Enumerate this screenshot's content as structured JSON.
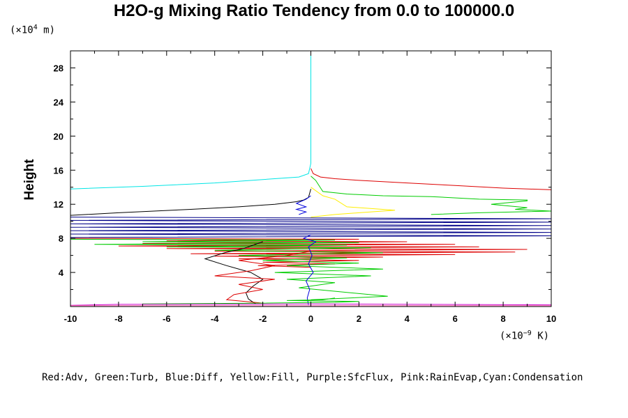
{
  "chart_data": {
    "type": "line",
    "title": "H2O-g Mixing Ratio Tendency from 0.0 to 100000.0",
    "ylabel": "Height",
    "y_unit": {
      "prefix": "(×10",
      "exp": "4",
      "suffix": " m)"
    },
    "x_unit": {
      "prefix": "(×10",
      "exp": "−9",
      "suffix": " K)"
    },
    "xlim": [
      -10,
      10
    ],
    "ylim": [
      0,
      30
    ],
    "x_ticks": [
      -10,
      -8,
      -6,
      -4,
      -2,
      0,
      2,
      4,
      6,
      8,
      10
    ],
    "x_tick_labels": [
      "-10",
      "-8",
      "-6",
      "-4",
      "-2",
      "0",
      "2",
      "4",
      "6",
      "8",
      "10"
    ],
    "y_ticks": [
      4,
      8,
      12,
      16,
      20,
      24,
      28
    ],
    "y_tick_labels": [
      "4",
      "8",
      "12",
      "16",
      "20",
      "24",
      "28"
    ],
    "legend_text": "Red:Adv, Green:Turb, Blue:Diff, Yellow:Fill, Purple:SfcFlux, Pink:RainEvap,Cyan:Condensation",
    "grid": false,
    "series": [
      {
        "color": "#00e5e5",
        "x": [
          0,
          0,
          -0.1,
          -0.5,
          -2,
          -4,
          -7,
          -10,
          -10
        ],
        "y": [
          30,
          16.8,
          15.6,
          15.2,
          14.9,
          14.5,
          14.1,
          13.8,
          13.6
        ]
      },
      {
        "color": "#dd0000",
        "x": [
          0,
          0.1,
          0.4,
          1,
          2,
          4,
          6,
          8,
          10,
          10
        ],
        "y": [
          16.2,
          15.6,
          15.2,
          15,
          14.8,
          14.5,
          14.2,
          13.9,
          13.7,
          13.5
        ]
      },
      {
        "color": "#00cc00",
        "x": [
          0,
          0.2,
          0.5,
          1.5,
          3,
          5,
          7,
          9,
          9,
          7.5,
          9,
          8.5,
          10,
          7,
          5
        ],
        "y": [
          15.3,
          14.8,
          13.5,
          13.2,
          13.0,
          12.9,
          12.6,
          12.5,
          12.4,
          12.0,
          11.6,
          11.4,
          11.2,
          11.0,
          10.8
        ]
      },
      {
        "color": "#ffee00",
        "x": [
          0,
          0.5,
          1,
          1.5,
          3.5,
          2,
          1,
          0
        ],
        "y": [
          14.0,
          13.0,
          12.6,
          11.7,
          11.3,
          11.0,
          10.8,
          10.5
        ]
      },
      {
        "color": "#000000",
        "x": [
          0,
          -0.1,
          -0.3,
          -0.6,
          -1.5,
          -3,
          -5,
          -8,
          -10
        ],
        "y": [
          13.8,
          12.8,
          12.5,
          12.3,
          12.0,
          11.7,
          11.4,
          11.0,
          10.7
        ]
      },
      {
        "color": "#0000dd",
        "x": [
          0,
          -0.2,
          -0.6,
          -0.2,
          -0.6,
          -0.2,
          -0.5
        ],
        "y": [
          13.0,
          12.6,
          12.1,
          11.7,
          11.4,
          11.1,
          10.8
        ]
      },
      {
        "color": "#000088",
        "x": [
          -10,
          10,
          -10,
          10,
          -10,
          10,
          -10,
          10,
          -10,
          10,
          -10,
          10,
          -10
        ],
        "y": [
          10.5,
          10.3,
          10.1,
          9.9,
          9.7,
          9.5,
          9.3,
          9.1,
          8.9,
          8.7,
          8.5,
          8.3,
          8.1
        ]
      },
      {
        "color": "#dd0000",
        "x": [
          -10,
          2,
          -6,
          4,
          -7,
          6,
          -8,
          7,
          -6,
          9,
          -4,
          8.5,
          -5,
          6,
          -4,
          3,
          -3,
          2,
          -2,
          1,
          -2.2,
          0
        ],
        "y": [
          8.0,
          7.9,
          7.7,
          7.6,
          7.4,
          7.3,
          7.1,
          7.0,
          6.8,
          6.7,
          6.5,
          6.4,
          6.2,
          6.1,
          5.9,
          5.8,
          5.6,
          5.4,
          5.2,
          5.0,
          4.8,
          4.6
        ]
      },
      {
        "color": "#00cc00",
        "x": [
          -10,
          1,
          -7,
          2,
          -9,
          1.5,
          -6,
          2.5,
          -4,
          3,
          -3,
          1.5,
          -2,
          2,
          -1,
          3,
          -1.5,
          2.5,
          -1,
          1,
          -0.5,
          3.2,
          0
        ],
        "y": [
          7.9,
          7.8,
          7.6,
          7.5,
          7.3,
          7.2,
          7.0,
          6.9,
          6.6,
          6.3,
          6.0,
          5.7,
          5.4,
          5.1,
          4.8,
          4.4,
          4.0,
          3.6,
          3.2,
          2.8,
          2.2,
          1.2,
          0.8
        ]
      },
      {
        "color": "#000000",
        "x": [
          -2.3,
          -2.6,
          -2.7,
          -2.4,
          -2.0,
          -2.5,
          -3.5,
          -4.4,
          -3.6,
          -2.8,
          -2.4,
          -2.0
        ],
        "y": [
          0.3,
          0.9,
          1.6,
          2.4,
          3.2,
          4.0,
          4.8,
          5.6,
          6.3,
          6.8,
          7.2,
          7.6
        ]
      },
      {
        "color": "#dd0000",
        "x": [
          -2,
          -3.5,
          -3.2,
          -2,
          -3,
          -1.5,
          -4,
          -2.5,
          -1.5,
          -3,
          -1,
          0
        ],
        "y": [
          0.4,
          0.8,
          1.4,
          2.0,
          2.6,
          3.2,
          3.6,
          4.2,
          4.8,
          5.4,
          6.0,
          6.5
        ]
      },
      {
        "color": "#0000dd",
        "x": [
          -0.1,
          -0.15,
          -0.05,
          -0.2,
          0.1,
          -0.1,
          0.05,
          -0.1,
          0.2,
          -0.3,
          0
        ],
        "y": [
          0.2,
          1.0,
          2.0,
          3.0,
          4.0,
          5.0,
          6.0,
          7.0,
          7.6,
          8.0,
          8.4
        ]
      },
      {
        "color": "#00cc00",
        "x": [
          -7,
          -2,
          1,
          2,
          -1,
          0.5,
          1
        ],
        "y": [
          0.3,
          0.4,
          0.5,
          0.6,
          0.7,
          0.8,
          1.0
        ]
      },
      {
        "color": "#cc00cc",
        "x": [
          -10,
          -8,
          0,
          10
        ],
        "y": [
          0.15,
          0.25,
          0.3,
          0.2
        ]
      },
      {
        "color": "#ff69b4",
        "x": [
          -10,
          0,
          10
        ],
        "y": [
          0.1,
          0.1,
          0.1
        ]
      }
    ]
  }
}
